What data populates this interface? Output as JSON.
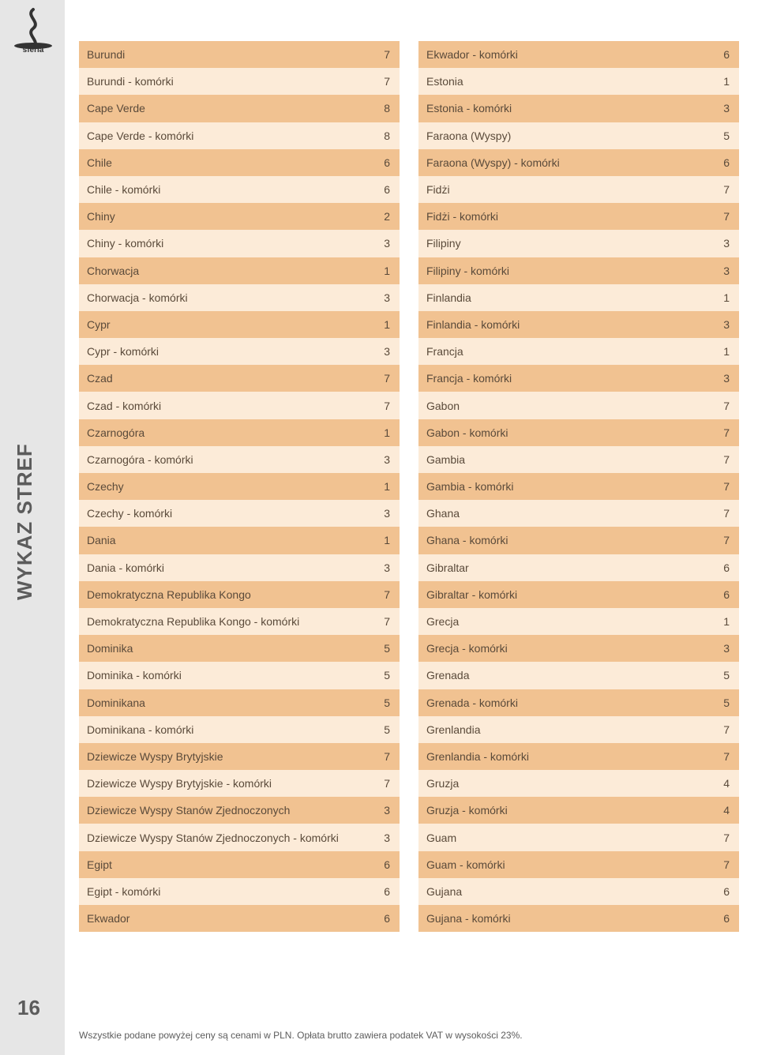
{
  "page_number": "16",
  "side_label": "WYKAZ STREF",
  "footer_text": "Wszystkie podane powyżej ceny są cenami w PLN. Opłata brutto zawiera podatek VAT w wysokości 23%.",
  "colors": {
    "row_dark": "#f1c291",
    "row_light": "#fcebd8",
    "text": "#5a4a3a",
    "sidebar": "#e6e6e6",
    "sidebar_text": "#5c5c5c"
  },
  "left_column": [
    {
      "name": "Burundi",
      "value": "7"
    },
    {
      "name": "Burundi - komórki",
      "value": "7"
    },
    {
      "name": "Cape Verde",
      "value": "8"
    },
    {
      "name": "Cape Verde - komórki",
      "value": "8"
    },
    {
      "name": "Chile",
      "value": "6"
    },
    {
      "name": "Chile - komórki",
      "value": "6"
    },
    {
      "name": "Chiny",
      "value": "2"
    },
    {
      "name": "Chiny - komórki",
      "value": "3"
    },
    {
      "name": "Chorwacja",
      "value": "1"
    },
    {
      "name": "Chorwacja - komórki",
      "value": "3"
    },
    {
      "name": "Cypr",
      "value": "1"
    },
    {
      "name": "Cypr - komórki",
      "value": "3"
    },
    {
      "name": "Czad",
      "value": "7"
    },
    {
      "name": "Czad - komórki",
      "value": "7"
    },
    {
      "name": "Czarnogóra",
      "value": "1"
    },
    {
      "name": "Czarnogóra - komórki",
      "value": "3"
    },
    {
      "name": "Czechy",
      "value": "1"
    },
    {
      "name": "Czechy - komórki",
      "value": "3"
    },
    {
      "name": "Dania",
      "value": "1"
    },
    {
      "name": "Dania - komórki",
      "value": "3"
    },
    {
      "name": "Demokratyczna Republika Kongo",
      "value": "7"
    },
    {
      "name": "Demokratyczna Republika Kongo - komórki",
      "value": "7"
    },
    {
      "name": "Dominika",
      "value": "5"
    },
    {
      "name": "Dominika - komórki",
      "value": "5"
    },
    {
      "name": "Dominikana",
      "value": "5"
    },
    {
      "name": "Dominikana - komórki",
      "value": "5"
    },
    {
      "name": "Dziewicze Wyspy Brytyjskie",
      "value": "7"
    },
    {
      "name": "Dziewicze Wyspy Brytyjskie - komórki",
      "value": "7"
    },
    {
      "name": "Dziewicze Wyspy Stanów Zjednoczonych",
      "value": "3"
    },
    {
      "name": "Dziewicze Wyspy Stanów Zjednoczonych - komórki",
      "value": "3"
    },
    {
      "name": "Egipt",
      "value": "6"
    },
    {
      "name": "Egipt - komórki",
      "value": "6"
    },
    {
      "name": "Ekwador",
      "value": "6"
    }
  ],
  "right_column": [
    {
      "name": "Ekwador - komórki",
      "value": "6"
    },
    {
      "name": "Estonia",
      "value": "1"
    },
    {
      "name": "Estonia - komórki",
      "value": "3"
    },
    {
      "name": "Faraona (Wyspy)",
      "value": "5"
    },
    {
      "name": "Faraona (Wyspy) - komórki",
      "value": "6"
    },
    {
      "name": "Fidżi",
      "value": "7"
    },
    {
      "name": "Fidżi - komórki",
      "value": "7"
    },
    {
      "name": "Filipiny",
      "value": "3"
    },
    {
      "name": "Filipiny - komórki",
      "value": "3"
    },
    {
      "name": "Finlandia",
      "value": "1"
    },
    {
      "name": "Finlandia - komórki",
      "value": "3"
    },
    {
      "name": "Francja",
      "value": "1"
    },
    {
      "name": "Francja - komórki",
      "value": "3"
    },
    {
      "name": "Gabon",
      "value": "7"
    },
    {
      "name": "Gabon - komórki",
      "value": "7"
    },
    {
      "name": "Gambia",
      "value": "7"
    },
    {
      "name": "Gambia - komórki",
      "value": "7"
    },
    {
      "name": "Ghana",
      "value": "7"
    },
    {
      "name": "Ghana - komórki",
      "value": "7"
    },
    {
      "name": "Gibraltar",
      "value": "6"
    },
    {
      "name": "Gibraltar - komórki",
      "value": "6"
    },
    {
      "name": "Grecja",
      "value": "1"
    },
    {
      "name": "Grecja - komórki",
      "value": "3"
    },
    {
      "name": "Grenada",
      "value": "5"
    },
    {
      "name": "Grenada - komórki",
      "value": "5"
    },
    {
      "name": "Grenlandia",
      "value": "7"
    },
    {
      "name": "Grenlandia - komórki",
      "value": "7"
    },
    {
      "name": "Gruzja",
      "value": "4"
    },
    {
      "name": "Gruzja - komórki",
      "value": "4"
    },
    {
      "name": "Guam",
      "value": "7"
    },
    {
      "name": "Guam - komórki",
      "value": "7"
    },
    {
      "name": "Gujana",
      "value": "6"
    },
    {
      "name": "Gujana - komórki",
      "value": "6"
    }
  ]
}
